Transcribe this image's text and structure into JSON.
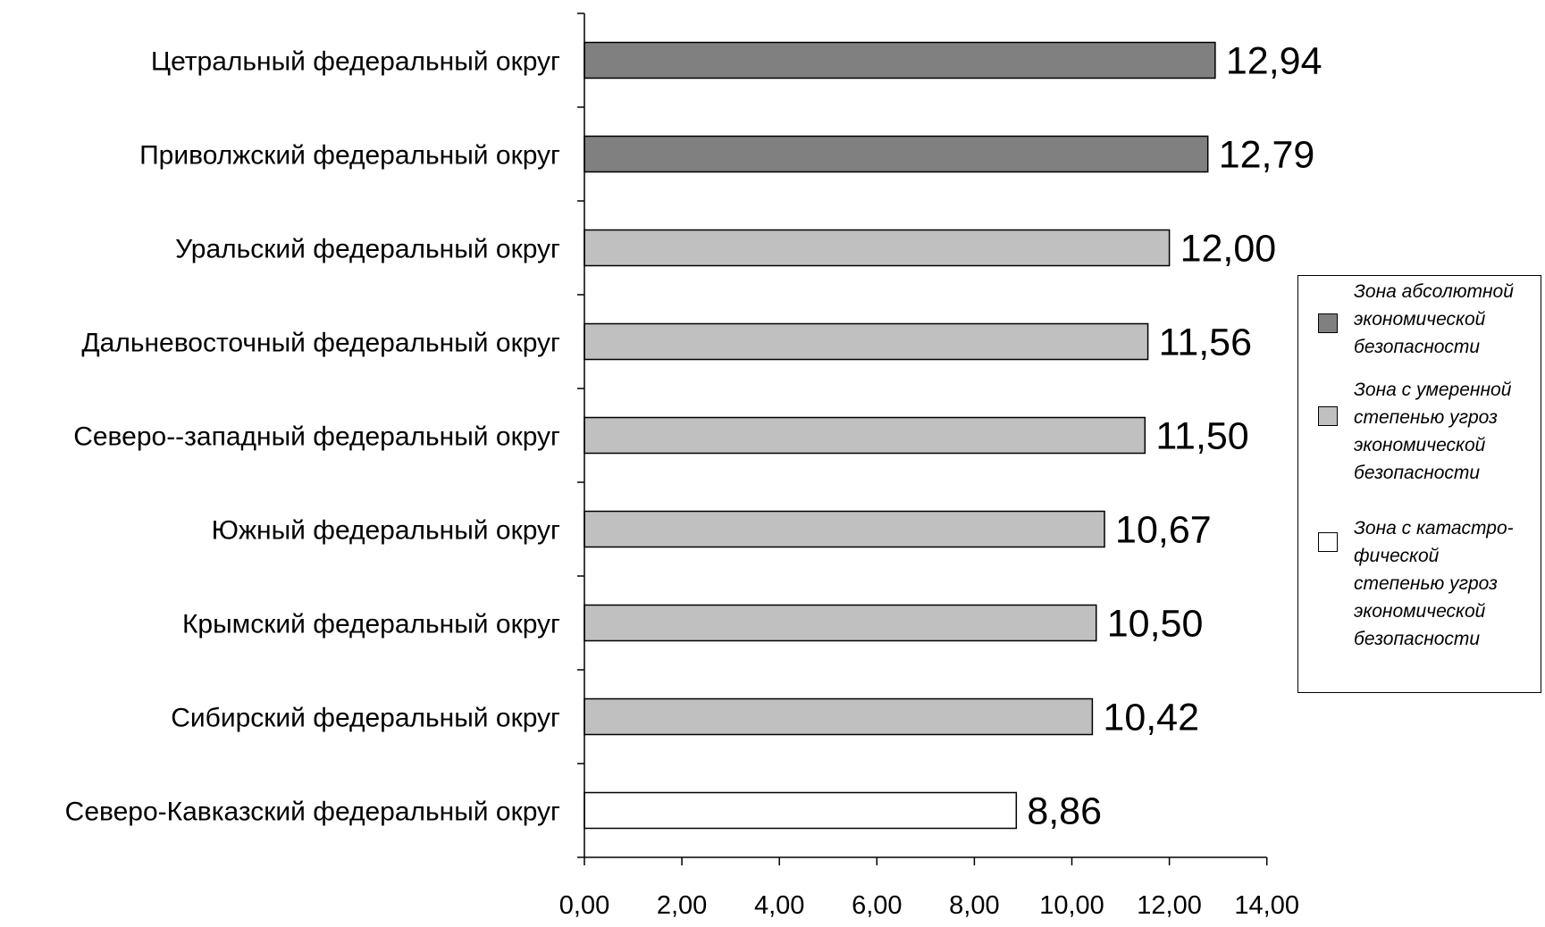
{
  "chart_data": {
    "type": "bar",
    "orientation": "horizontal",
    "title": "",
    "xlabel": "",
    "ylabel": "",
    "xlim": [
      0,
      14
    ],
    "x_ticks": [
      "0,00",
      "2,00",
      "4,00",
      "6,00",
      "8,00",
      "10,00",
      "12,00",
      "14,00"
    ],
    "grid": false,
    "legend_position": "right",
    "categories": [
      "Цетральный федеральный округ",
      "Приволжский федеральный округ",
      "Уральский федеральный округ",
      "Дальневосточный федеральный округ",
      "Северо--западный федеральный округ",
      "Южный федеральный округ",
      "Крымский федеральный округ",
      "Сибирский федеральный округ",
      "Северо-Кавказский федеральный округ"
    ],
    "values": [
      12.94,
      12.79,
      12.0,
      11.56,
      11.5,
      10.67,
      10.5,
      10.42,
      8.86
    ],
    "value_labels": [
      "12,94",
      "12,79",
      "12,00",
      "11,56",
      "11,50",
      "10,67",
      "10,50",
      "10,42",
      "8,86"
    ],
    "zones": [
      0,
      0,
      1,
      1,
      1,
      1,
      1,
      1,
      2
    ],
    "legend": [
      {
        "label": "Зона абсолютной экономической безопасности",
        "color": "#808080"
      },
      {
        "label": "Зона с умеренной степенью угроз экономической безопасности",
        "color": "#c0c0c0"
      },
      {
        "label": "Зона с катастро-фической степенью угроз экономической безопасности",
        "color": "#ffffff"
      }
    ]
  }
}
